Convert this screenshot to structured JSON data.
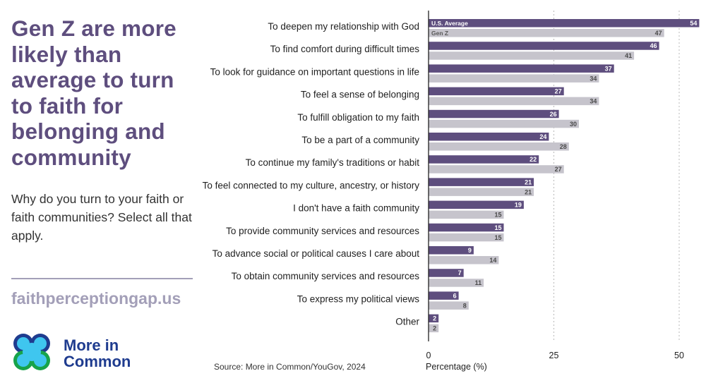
{
  "headline": {
    "title": "Gen Z are more likely than average to turn to faith for belonging and community",
    "question": "Why do you turn to your faith or faith communities? Select all that apply."
  },
  "footer": {
    "website": "faithperceptiongap.us",
    "brand_line1": "More in",
    "brand_line2": "Common",
    "source": "Source: More in Common/YouGov, 2024"
  },
  "colors": {
    "us_average": "#5e4e7e",
    "gen_z": "#c6c4cc",
    "title": "#5e4e7e",
    "link": "#a39fb8",
    "brand": "#1f3c8f"
  },
  "chart_data": {
    "type": "bar",
    "orientation": "horizontal",
    "categories": [
      "To deepen my relationship with God",
      "To find comfort during difficult times",
      "To look for guidance on important questions in life",
      "To feel a sense of belonging",
      "To fulfill obligation to my faith",
      "To be a part of a community",
      "To continue my family's traditions or habit",
      "To feel connected to my culture, ancestry, or history",
      "I don't have a faith community",
      "To provide community services and resources",
      "To advance social or political causes I care about",
      "To obtain community services and resources",
      "To express my political views",
      "Other"
    ],
    "series": [
      {
        "name": "U.S. Average",
        "values": [
          54,
          46,
          37,
          27,
          26,
          24,
          22,
          21,
          19,
          15,
          9,
          7,
          6,
          2
        ]
      },
      {
        "name": "Gen Z",
        "values": [
          47,
          41,
          34,
          34,
          30,
          28,
          27,
          21,
          15,
          15,
          14,
          11,
          8,
          2
        ]
      }
    ],
    "xlabel": "Percentage (%)",
    "xlim": [
      0,
      55
    ],
    "xticks": [
      0,
      25,
      50
    ],
    "gridlines": "dotted at 25 and 50",
    "legend": "inside top bars"
  }
}
